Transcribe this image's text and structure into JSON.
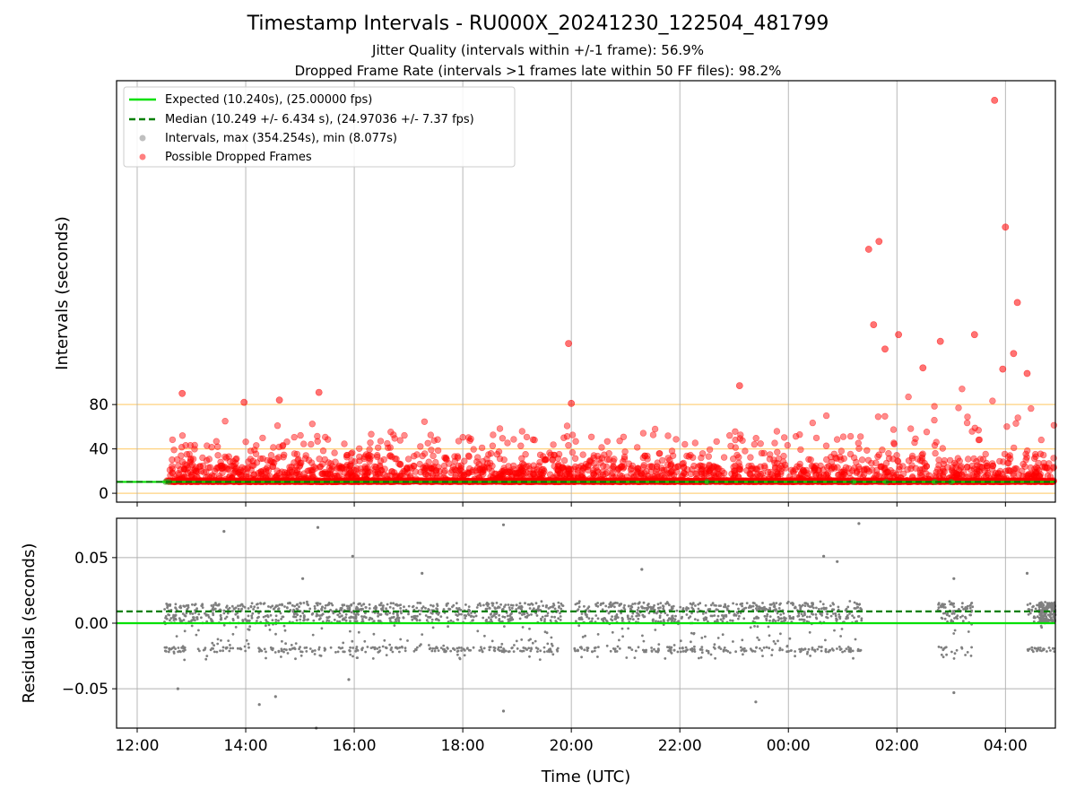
{
  "figure": {
    "title": "Timestamp Intervals - RU000X_20241230_122504_481799",
    "subtitle_1": "Jitter Quality (intervals within +/-1 frame): 56.9%",
    "subtitle_2": "Dropped Frame Rate (intervals >1 frames late within 50 FF files): 98.2%"
  },
  "chart_data": [
    {
      "type": "scatter",
      "panel": "intervals",
      "ylabel": "Intervals (seconds)",
      "xlabel": "",
      "xlim": [
        11.62,
        28.92
      ],
      "ylim": [
        -8,
        372
      ],
      "yticks": [
        0,
        40,
        80
      ],
      "reference_lines_y": [
        0,
        40,
        80
      ],
      "reference_line_color": "#ffd27f",
      "grid": "vertical",
      "legend_position": "top-left",
      "expected": {
        "label": "Expected (10.240s), (25.00000 fps)",
        "value": 10.24,
        "color": "#00e000"
      },
      "median": {
        "label": "Median (10.249 +/- 6.434 s), (24.97036 +/- 7.37 fps)",
        "value": 10.249,
        "color": "#007f00"
      },
      "intervals_series": {
        "label": "Intervals, max (354.254s), min (8.077s)",
        "color": "#7f7f7f",
        "max": 354.254,
        "min": 8.077
      },
      "dropped_series": {
        "label": "Possible Dropped Frames",
        "color": "#ff0000",
        "notable_points": [
          {
            "x": 12.83,
            "y": 90
          },
          {
            "x": 13.97,
            "y": 82
          },
          {
            "x": 14.62,
            "y": 84
          },
          {
            "x": 15.35,
            "y": 91
          },
          {
            "x": 19.95,
            "y": 135
          },
          {
            "x": 20.0,
            "y": 81
          },
          {
            "x": 23.1,
            "y": 97
          },
          {
            "x": 25.48,
            "y": 220
          },
          {
            "x": 25.57,
            "y": 152
          },
          {
            "x": 25.67,
            "y": 227
          },
          {
            "x": 25.78,
            "y": 130
          },
          {
            "x": 26.03,
            "y": 143
          },
          {
            "x": 26.48,
            "y": 113
          },
          {
            "x": 26.8,
            "y": 137
          },
          {
            "x": 27.43,
            "y": 143
          },
          {
            "x": 27.8,
            "y": 354.254
          },
          {
            "x": 28.0,
            "y": 240
          },
          {
            "x": 28.22,
            "y": 172
          },
          {
            "x": 28.15,
            "y": 126
          },
          {
            "x": 27.95,
            "y": 112
          },
          {
            "x": 28.4,
            "y": 108
          }
        ]
      }
    },
    {
      "type": "scatter",
      "panel": "residuals",
      "ylabel": "Residuals (seconds)",
      "xlabel": "Time (UTC)",
      "xlim": [
        11.62,
        28.92
      ],
      "ylim": [
        -0.08,
        0.08
      ],
      "yticks": [
        -0.05,
        0.0,
        0.05
      ],
      "ytick_labels": [
        "−0.05",
        "0.00",
        "0.05"
      ],
      "grid": "both",
      "zero_line": {
        "value": 0.0,
        "color": "#00e000"
      },
      "median_line": {
        "value": 0.009,
        "color": "#007f00"
      },
      "points_color": "#7f7f7f",
      "bands": [
        0.012,
        0.004,
        -0.02
      ],
      "outliers": [
        {
          "x": 13.6,
          "y": 0.07
        },
        {
          "x": 15.33,
          "y": 0.073
        },
        {
          "x": 15.97,
          "y": 0.051
        },
        {
          "x": 18.75,
          "y": 0.075
        },
        {
          "x": 25.3,
          "y": 0.076
        },
        {
          "x": 24.65,
          "y": 0.051
        },
        {
          "x": 12.75,
          "y": -0.05
        },
        {
          "x": 14.25,
          "y": -0.062
        },
        {
          "x": 14.55,
          "y": -0.056
        },
        {
          "x": 15.3,
          "y": -0.08
        },
        {
          "x": 15.9,
          "y": -0.043
        },
        {
          "x": 18.75,
          "y": -0.067
        },
        {
          "x": 23.4,
          "y": -0.06
        },
        {
          "x": 27.05,
          "y": -0.053
        },
        {
          "x": 15.05,
          "y": 0.034
        },
        {
          "x": 17.25,
          "y": 0.038
        },
        {
          "x": 21.3,
          "y": 0.041
        },
        {
          "x": 28.4,
          "y": 0.038
        },
        {
          "x": 27.05,
          "y": 0.034
        },
        {
          "x": 24.9,
          "y": 0.047
        }
      ]
    }
  ],
  "x_axis": {
    "ticks": [
      12,
      14,
      16,
      18,
      20,
      22,
      24,
      26,
      28
    ],
    "tick_labels": [
      "12:00",
      "14:00",
      "16:00",
      "18:00",
      "20:00",
      "22:00",
      "00:00",
      "02:00",
      "04:00"
    ]
  }
}
